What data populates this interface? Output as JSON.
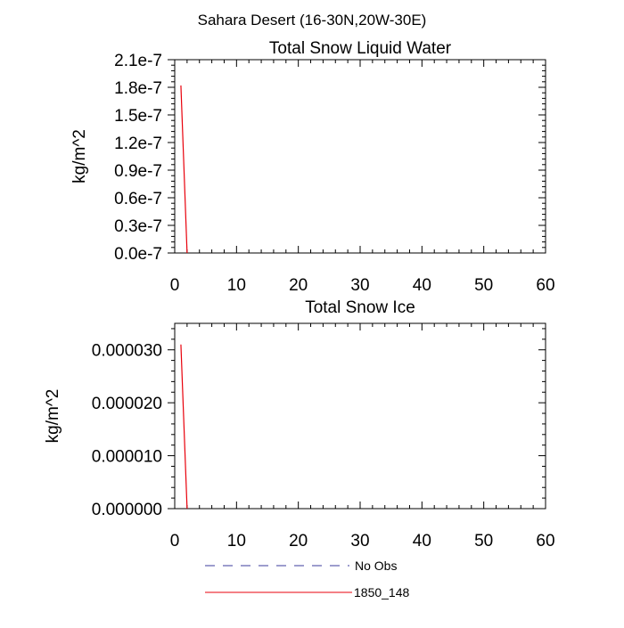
{
  "figure": {
    "suptitle": "Sahara Desert (16-30N,20W-30E)"
  },
  "chart_data": [
    {
      "type": "line",
      "title": "Total Snow Liquid Water",
      "xlabel": "",
      "ylabel": "kg/m^2",
      "xlim": [
        0,
        60
      ],
      "ylim": [
        0,
        2.1e-07
      ],
      "x_ticks": [
        0,
        10,
        20,
        30,
        40,
        50,
        60
      ],
      "x_tick_labels": [
        "0",
        "10",
        "20",
        "30",
        "40",
        "50",
        "60"
      ],
      "y_ticks": [
        0,
        3e-08,
        6e-08,
        9e-08,
        1.2e-07,
        1.5e-07,
        1.8e-07,
        2.1e-07
      ],
      "y_tick_labels": [
        "0.0e-7",
        "0.3e-7",
        "0.6e-7",
        "0.9e-7",
        "1.2e-7",
        "1.5e-7",
        "1.8e-7",
        "2.1e-7"
      ],
      "grid": false,
      "series": [
        {
          "name": "1850_148",
          "color": "#e8000b",
          "dash": "solid",
          "x": [
            1,
            2
          ],
          "y": [
            1.82e-07,
            0
          ]
        }
      ]
    },
    {
      "type": "line",
      "title": "Total Snow Ice",
      "xlabel": "",
      "ylabel": "kg/m^2",
      "xlim": [
        0,
        60
      ],
      "ylim": [
        0,
        3.5e-05
      ],
      "x_ticks": [
        0,
        10,
        20,
        30,
        40,
        50,
        60
      ],
      "x_tick_labels": [
        "0",
        "10",
        "20",
        "30",
        "40",
        "50",
        "60"
      ],
      "y_ticks": [
        0,
        1e-05,
        2e-05,
        3e-05
      ],
      "y_tick_labels": [
        "0.000000",
        "0.000010",
        "0.000020",
        "0.000030"
      ],
      "grid": false,
      "series": [
        {
          "name": "1850_148",
          "color": "#e8000b",
          "dash": "solid",
          "x": [
            1,
            2
          ],
          "y": [
            3.1e-05,
            0
          ]
        }
      ]
    }
  ],
  "legend": {
    "placement": "bottom",
    "entries": [
      {
        "label": "No Obs",
        "color": "#3b3b9e",
        "dash": "dashed"
      },
      {
        "label": "1850_148",
        "color": "#e8000b",
        "dash": "solid"
      }
    ]
  }
}
